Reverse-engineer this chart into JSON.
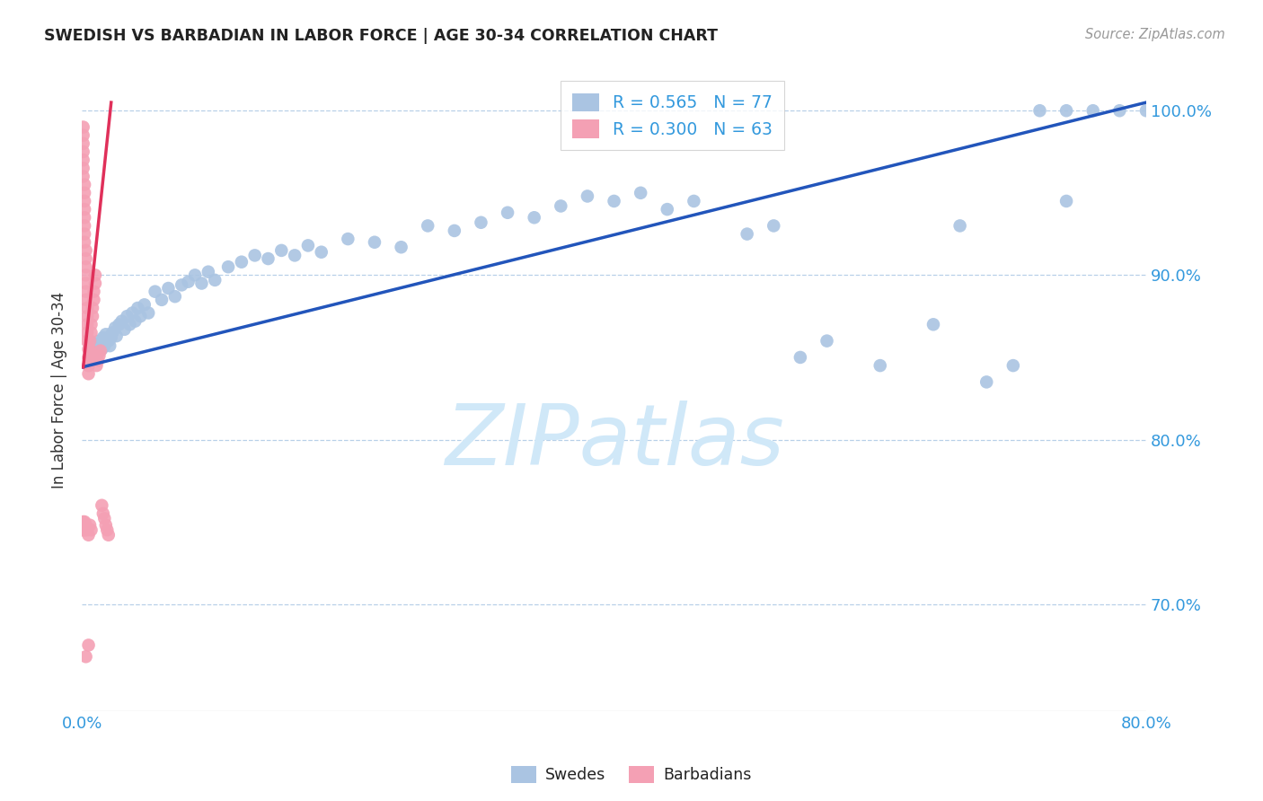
{
  "title": "SWEDISH VS BARBADIAN IN LABOR FORCE | AGE 30-34 CORRELATION CHART",
  "source": "Source: ZipAtlas.com",
  "ylabel": "In Labor Force | Age 30-34",
  "x_min": 0.0,
  "x_max": 0.8,
  "y_min": 0.635,
  "y_max": 1.025,
  "y_ticks": [
    0.7,
    0.8,
    0.9,
    1.0
  ],
  "y_tick_labels": [
    "70.0%",
    "80.0%",
    "90.0%",
    "100.0%"
  ],
  "blue_R": 0.565,
  "blue_N": 77,
  "pink_R": 0.3,
  "pink_N": 63,
  "blue_color": "#aac4e2",
  "blue_line_color": "#2255bb",
  "pink_color": "#f4a0b4",
  "pink_line_color": "#e0305a",
  "watermark": "ZIPatlas",
  "watermark_color": "#d0e8f8",
  "legend_label_blue": "Swedes",
  "legend_label_pink": "Barbadians",
  "blue_trend_x0": 0.0,
  "blue_trend_y0": 0.844,
  "blue_trend_x1": 0.8,
  "blue_trend_y1": 1.005,
  "pink_trend_x0": 0.001,
  "pink_trend_y0": 0.844,
  "pink_trend_x1": 0.022,
  "pink_trend_y1": 1.005,
  "blue_x": [
    0.005,
    0.007,
    0.008,
    0.009,
    0.01,
    0.011,
    0.012,
    0.013,
    0.015,
    0.016,
    0.017,
    0.018,
    0.019,
    0.02,
    0.021,
    0.022,
    0.023,
    0.025,
    0.026,
    0.028,
    0.03,
    0.032,
    0.034,
    0.036,
    0.038,
    0.04,
    0.042,
    0.044,
    0.047,
    0.05,
    0.055,
    0.06,
    0.065,
    0.07,
    0.075,
    0.08,
    0.085,
    0.09,
    0.095,
    0.1,
    0.11,
    0.12,
    0.13,
    0.14,
    0.15,
    0.16,
    0.17,
    0.18,
    0.2,
    0.22,
    0.24,
    0.26,
    0.28,
    0.3,
    0.32,
    0.34,
    0.36,
    0.38,
    0.4,
    0.42,
    0.44,
    0.46,
    0.5,
    0.52,
    0.54,
    0.56,
    0.6,
    0.64,
    0.68,
    0.7,
    0.72,
    0.74,
    0.76,
    0.78,
    0.8,
    0.74,
    0.66
  ],
  "blue_y": [
    0.845,
    0.85,
    0.852,
    0.854,
    0.856,
    0.858,
    0.853,
    0.86,
    0.855,
    0.862,
    0.857,
    0.864,
    0.86,
    0.86,
    0.857,
    0.862,
    0.865,
    0.868,
    0.863,
    0.87,
    0.872,
    0.867,
    0.875,
    0.87,
    0.877,
    0.872,
    0.88,
    0.875,
    0.882,
    0.877,
    0.89,
    0.885,
    0.892,
    0.887,
    0.894,
    0.896,
    0.9,
    0.895,
    0.902,
    0.897,
    0.905,
    0.908,
    0.912,
    0.91,
    0.915,
    0.912,
    0.918,
    0.914,
    0.922,
    0.92,
    0.917,
    0.93,
    0.927,
    0.932,
    0.938,
    0.935,
    0.942,
    0.948,
    0.945,
    0.95,
    0.94,
    0.945,
    0.925,
    0.93,
    0.85,
    0.86,
    0.845,
    0.87,
    0.835,
    0.845,
    1.0,
    1.0,
    1.0,
    1.0,
    1.0,
    0.945,
    0.93
  ],
  "pink_x": [
    0.001,
    0.001,
    0.001,
    0.001,
    0.001,
    0.001,
    0.001,
    0.002,
    0.002,
    0.002,
    0.002,
    0.002,
    0.002,
    0.002,
    0.002,
    0.003,
    0.003,
    0.003,
    0.003,
    0.003,
    0.003,
    0.003,
    0.004,
    0.004,
    0.004,
    0.004,
    0.004,
    0.005,
    0.005,
    0.005,
    0.005,
    0.006,
    0.006,
    0.006,
    0.007,
    0.007,
    0.008,
    0.008,
    0.009,
    0.009,
    0.01,
    0.01,
    0.011,
    0.012,
    0.013,
    0.014,
    0.015,
    0.016,
    0.017,
    0.018,
    0.019,
    0.02,
    0.001,
    0.001,
    0.002,
    0.002,
    0.003,
    0.004,
    0.005,
    0.006,
    0.007,
    0.005,
    0.003
  ],
  "pink_y": [
    0.99,
    0.985,
    0.98,
    0.975,
    0.97,
    0.965,
    0.96,
    0.955,
    0.95,
    0.945,
    0.94,
    0.935,
    0.93,
    0.925,
    0.92,
    0.915,
    0.91,
    0.905,
    0.9,
    0.895,
    0.89,
    0.885,
    0.88,
    0.875,
    0.87,
    0.865,
    0.86,
    0.855,
    0.85,
    0.845,
    0.84,
    0.85,
    0.855,
    0.86,
    0.865,
    0.87,
    0.875,
    0.88,
    0.885,
    0.89,
    0.895,
    0.9,
    0.845,
    0.848,
    0.851,
    0.854,
    0.76,
    0.755,
    0.752,
    0.748,
    0.745,
    0.742,
    0.745,
    0.75,
    0.745,
    0.75,
    0.748,
    0.745,
    0.742,
    0.748,
    0.745,
    0.675,
    0.668
  ]
}
